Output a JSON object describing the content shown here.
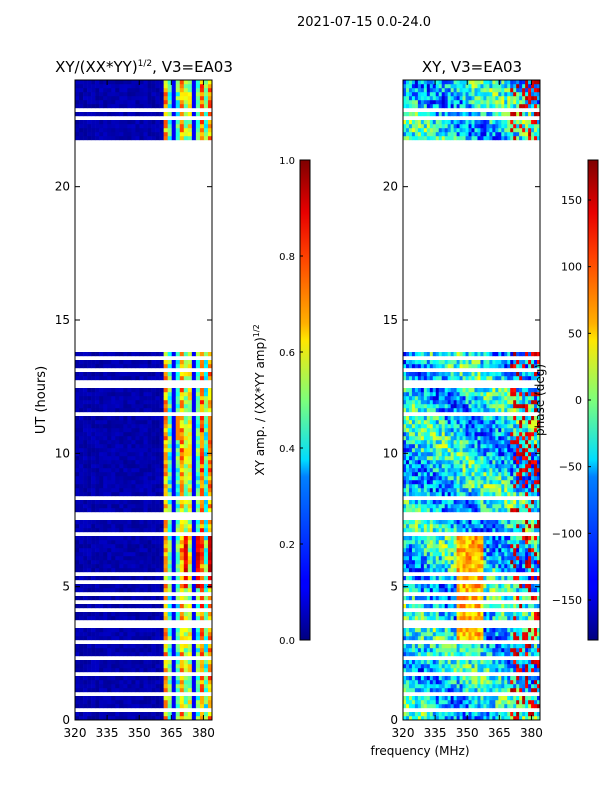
{
  "suptitle": "2021-07-15 0.0-24.0",
  "xlabel": "frequency (MHz)",
  "chart_data": [
    {
      "type": "heatmap",
      "title": "XY/(XX*YY)",
      "title_superscript": "1/2",
      "title_suffix": ", V3=EA03",
      "ylabel": "UT (hours)",
      "xlim": [
        320,
        384
      ],
      "ylim": [
        0,
        24
      ],
      "xticks": [
        "320",
        "335",
        "350",
        "365",
        "380"
      ],
      "xtick_values": [
        320,
        335,
        350,
        365,
        380
      ],
      "yticks": [
        "0",
        "5",
        "10",
        "15",
        "20"
      ],
      "ytick_values": [
        0,
        5,
        10,
        15,
        20
      ],
      "data_gap_hours": [
        13.8,
        21.4
      ],
      "active_band_mhz": [
        361,
        384
      ],
      "colorbar": {
        "label": "XY amp. / (XX*YY amp)",
        "label_superscript": "1/2",
        "range": [
          0,
          1
        ],
        "ticks": [
          "0.0",
          "0.2",
          "0.4",
          "0.6",
          "0.8",
          "1.0"
        ],
        "tick_values": [
          0,
          0.2,
          0.4,
          0.6,
          0.8,
          1.0
        ]
      }
    },
    {
      "type": "heatmap",
      "title": "XY, V3=EA03",
      "xlim": [
        320,
        384
      ],
      "ylim": [
        0,
        24
      ],
      "xticks": [
        "320",
        "335",
        "350",
        "365",
        "380"
      ],
      "xtick_values": [
        320,
        335,
        350,
        365,
        380
      ],
      "yticks": [
        "0",
        "5",
        "10",
        "15",
        "20"
      ],
      "ytick_values": [
        0,
        5,
        10,
        15,
        20
      ],
      "data_gap_hours": [
        13.8,
        21.4
      ],
      "colorbar": {
        "label": "phase (deg)",
        "range": [
          -180,
          180
        ],
        "ticks": [
          "−150",
          "−100",
          "−50",
          "0",
          "50",
          "100",
          "150"
        ],
        "tick_values": [
          -150,
          -100,
          -50,
          0,
          50,
          100,
          150
        ]
      }
    }
  ]
}
